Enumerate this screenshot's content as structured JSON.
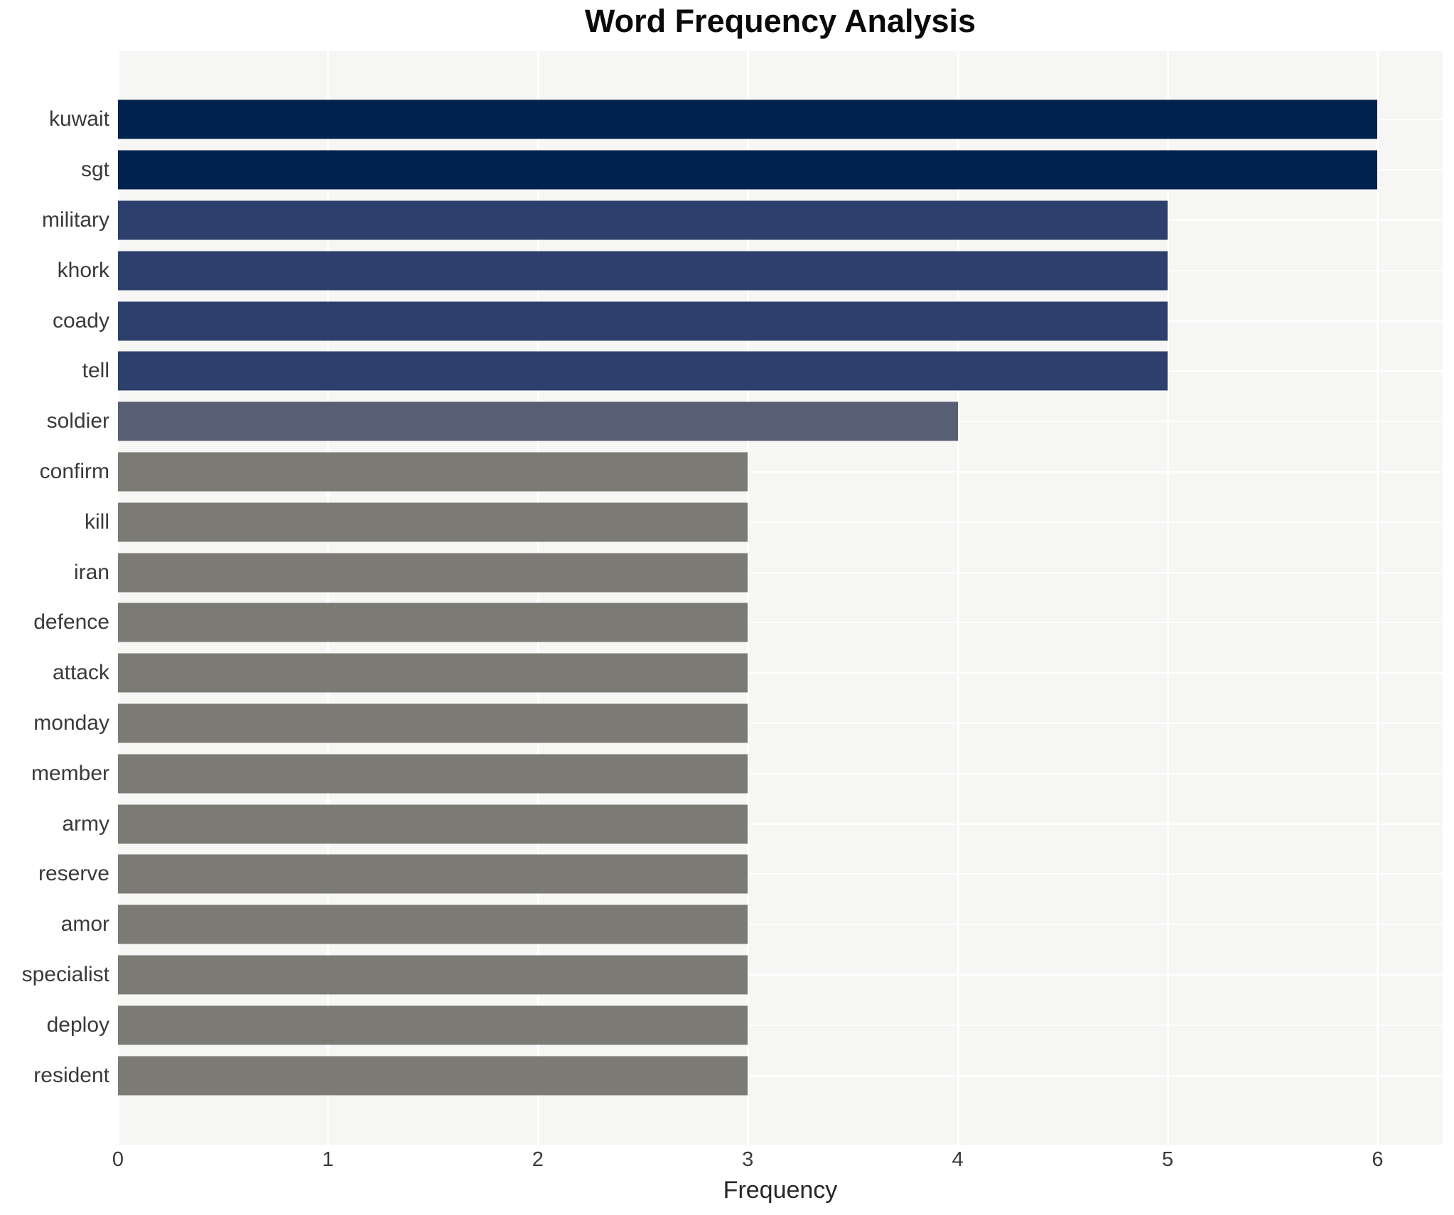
{
  "chart_data": {
    "type": "bar",
    "orientation": "horizontal",
    "title": "Word Frequency Analysis",
    "xlabel": "Frequency",
    "ylabel": "",
    "categories": [
      "kuwait",
      "sgt",
      "military",
      "khork",
      "coady",
      "tell",
      "soldier",
      "confirm",
      "kill",
      "iran",
      "defence",
      "attack",
      "monday",
      "member",
      "army",
      "reserve",
      "amor",
      "specialist",
      "deploy",
      "resident"
    ],
    "values": [
      6,
      6,
      5,
      5,
      5,
      5,
      4,
      3,
      3,
      3,
      3,
      3,
      3,
      3,
      3,
      3,
      3,
      3,
      3,
      3
    ],
    "bar_colors": [
      "#00224e",
      "#00224e",
      "#2d3f6c",
      "#2d3f6c",
      "#2d3f6c",
      "#2d3f6c",
      "#585e73",
      "#7c7a75",
      "#7c7a75",
      "#7c7a75",
      "#7c7a75",
      "#7c7a75",
      "#7c7a75",
      "#7c7a75",
      "#7c7a75",
      "#7c7a75",
      "#7c7a75",
      "#7c7a75",
      "#7c7a75",
      "#7c7a75"
    ],
    "xticks": [
      0,
      1,
      2,
      3,
      4,
      5,
      6
    ],
    "xlim": [
      0,
      6.31
    ],
    "grid": true,
    "legend_position": "none"
  },
  "style": {
    "figure_background": "#ffffff",
    "plot_background": "#f6f6f4",
    "grid_color": "#ffffff",
    "title_color": "#0a0a0a",
    "tick_label_color": "#3a3a3a",
    "category_label_color": "#3a3a3a",
    "xlabel_color": "#262626"
  }
}
